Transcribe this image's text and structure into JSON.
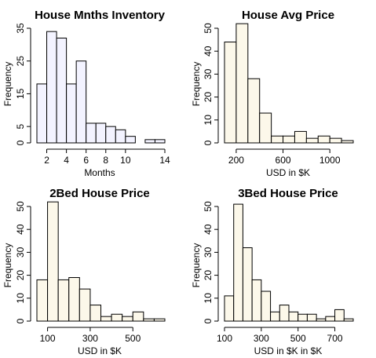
{
  "chart_data": [
    {
      "type": "bar",
      "title": "House Mnths Inventory",
      "xlabel": "Months",
      "ylabel": "Frequency",
      "fill": "#f3f3ff",
      "bin_edges": [
        1,
        2,
        3,
        4,
        5,
        6,
        7,
        8,
        9,
        10,
        11,
        12,
        13,
        14
      ],
      "values": [
        18,
        34,
        32,
        18,
        25,
        6,
        6,
        5,
        4,
        2,
        0,
        1,
        1
      ],
      "xlim": [
        1,
        14
      ],
      "ylim": [
        0,
        35
      ],
      "xticks": [
        2,
        4,
        6,
        8,
        10,
        14
      ],
      "yticks": [
        0,
        5,
        15,
        25,
        35
      ]
    },
    {
      "type": "bar",
      "title": "House Avg Price",
      "xlabel": "USD in $K",
      "ylabel": "Frequency",
      "fill": "#fcf8ea",
      "bin_edges": [
        100,
        200,
        300,
        400,
        500,
        600,
        700,
        800,
        900,
        1000,
        1100,
        1200
      ],
      "values": [
        44,
        52,
        28,
        13,
        3,
        3,
        5,
        2,
        3,
        2,
        1
      ],
      "xlim": [
        100,
        1200
      ],
      "ylim": [
        0,
        50
      ],
      "xticks": [
        200,
        600,
        1000
      ],
      "yticks": [
        0,
        10,
        20,
        30,
        40,
        50
      ]
    },
    {
      "type": "bar",
      "title": "2Bed House Price",
      "xlabel": "USD in $K",
      "ylabel": "Frequency",
      "fill": "#fcf8ea",
      "bin_edges": [
        50,
        100,
        150,
        200,
        250,
        300,
        350,
        400,
        450,
        500,
        550,
        600,
        650
      ],
      "values": [
        18,
        52,
        18,
        19,
        14,
        7,
        2,
        3,
        2,
        4,
        1,
        1
      ],
      "xlim": [
        50,
        650
      ],
      "ylim": [
        0,
        50
      ],
      "xticks": [
        100,
        300,
        500
      ],
      "yticks": [
        0,
        10,
        20,
        30,
        40,
        50
      ]
    },
    {
      "type": "bar",
      "title": "3Bed House Price",
      "xlabel": "USD in $K in $K",
      "ylabel": "Frequency",
      "fill": "#fcf8ea",
      "bin_edges": [
        100,
        150,
        200,
        250,
        300,
        350,
        400,
        450,
        500,
        550,
        600,
        650,
        700,
        750,
        800
      ],
      "values": [
        11,
        51,
        32,
        18,
        13,
        4,
        7,
        4,
        3,
        3,
        1,
        2,
        5,
        1
      ],
      "xlim": [
        100,
        800
      ],
      "ylim": [
        0,
        50
      ],
      "xticks": [
        100,
        300,
        500,
        700
      ],
      "yticks": [
        0,
        10,
        20,
        30,
        40,
        50
      ]
    }
  ]
}
